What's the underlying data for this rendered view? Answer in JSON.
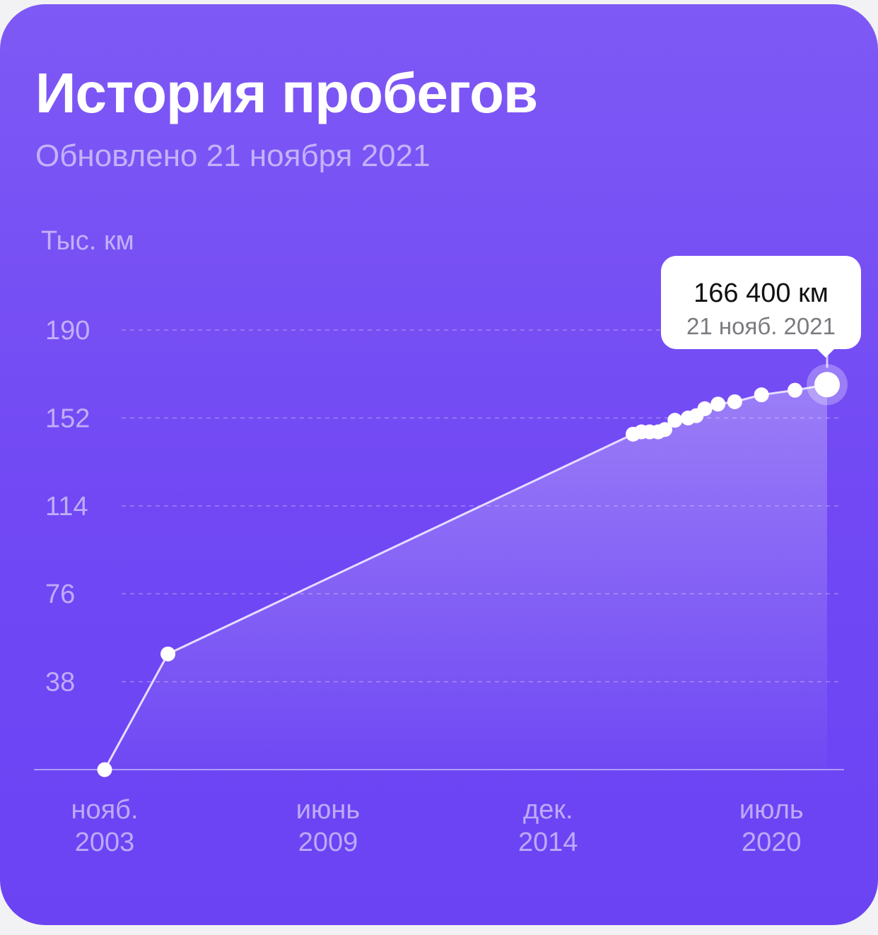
{
  "card": {
    "title": "История пробегов",
    "subtitle": "Обновлено 21 ноября 2021"
  },
  "colors": {
    "card_bg": "#7148f4",
    "line": "#e6ddff",
    "point": "#ffffff"
  },
  "tooltip": {
    "value": "166 400 км",
    "date": "21 нояб. 2021"
  },
  "chart_data": {
    "type": "line",
    "title": "",
    "ylabel": "Тыс. км",
    "xlabel": "",
    "ylim": [
      0,
      190
    ],
    "xlim": [
      "2003-11-01",
      "2021-11-21"
    ],
    "yticks": [
      38,
      76,
      114,
      152,
      190
    ],
    "xticks": [
      {
        "date": "2003-11-01",
        "label1": "нояб.",
        "label2": "2003"
      },
      {
        "date": "2009-06-01",
        "label1": "июнь",
        "label2": "2009"
      },
      {
        "date": "2014-12-01",
        "label1": "дек.",
        "label2": "2014"
      },
      {
        "date": "2020-07-01",
        "label1": "июль",
        "label2": "2020"
      }
    ],
    "grid": true,
    "area_fill": true,
    "series": [
      {
        "values": [
          {
            "x": "2003-11-01",
            "y": 0
          },
          {
            "x": "2005-06-01",
            "y": 50
          },
          {
            "x": "2017-01-15",
            "y": 145
          },
          {
            "x": "2017-04-01",
            "y": 146
          },
          {
            "x": "2017-06-15",
            "y": 146
          },
          {
            "x": "2017-09-01",
            "y": 146
          },
          {
            "x": "2017-11-01",
            "y": 147
          },
          {
            "x": "2018-02-01",
            "y": 151
          },
          {
            "x": "2018-06-01",
            "y": 152
          },
          {
            "x": "2018-08-15",
            "y": 153
          },
          {
            "x": "2018-11-01",
            "y": 156
          },
          {
            "x": "2019-03-01",
            "y": 158
          },
          {
            "x": "2019-08-01",
            "y": 159
          },
          {
            "x": "2020-04-01",
            "y": 162
          },
          {
            "x": "2021-02-01",
            "y": 164
          },
          {
            "x": "2021-11-21",
            "y": 166.4
          }
        ]
      }
    ],
    "highlight": {
      "x": "2021-11-21",
      "y": 166.4
    }
  }
}
